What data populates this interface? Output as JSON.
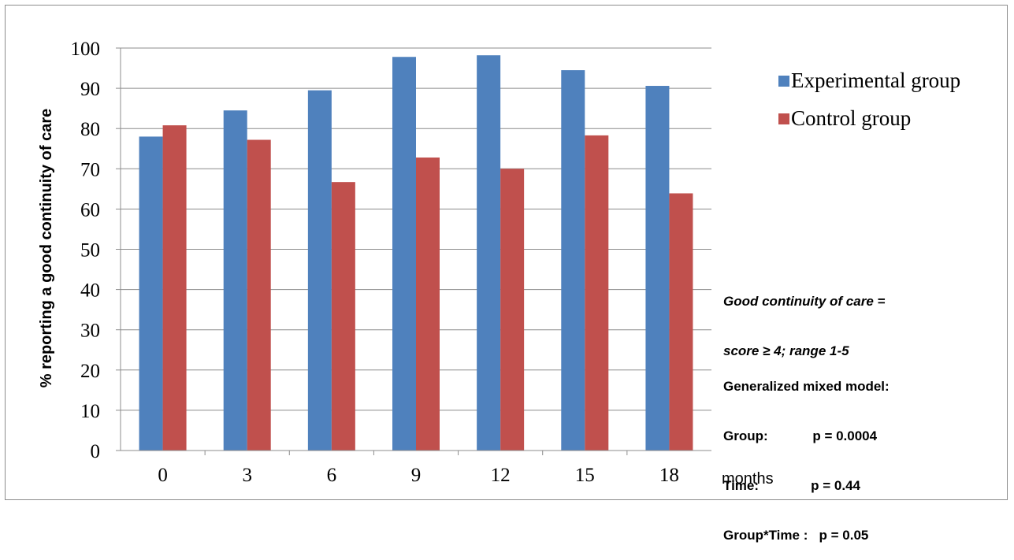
{
  "chart_data": {
    "type": "bar",
    "title": "",
    "xlabel": "months",
    "ylabel": "% reporting a good continuity of care",
    "ylim": [
      0,
      100
    ],
    "yticks": [
      0,
      10,
      20,
      30,
      40,
      50,
      60,
      70,
      80,
      90,
      100
    ],
    "categories": [
      "0",
      "3",
      "6",
      "9",
      "12",
      "15",
      "18"
    ],
    "grid": true,
    "legend_position": "top-right",
    "series": [
      {
        "name": "Experimental group",
        "color": "#4f81bd",
        "values": [
          78,
          84.5,
          89.5,
          97.8,
          98.2,
          94.5,
          90.6
        ]
      },
      {
        "name": "Control group",
        "color": "#c0504d",
        "values": [
          80.8,
          77.2,
          66.7,
          72.8,
          70,
          78.3,
          63.9
        ]
      }
    ],
    "annotations": {
      "definition_line1": "Good continuity of care =",
      "definition_line2": "score ≥ 4; range 1-5",
      "model_title": "Generalized mixed model:",
      "model_rows": [
        "Group:            p = 0.0004",
        "Time:              p = 0.44",
        "Group*Time :   p = 0.05"
      ]
    }
  }
}
